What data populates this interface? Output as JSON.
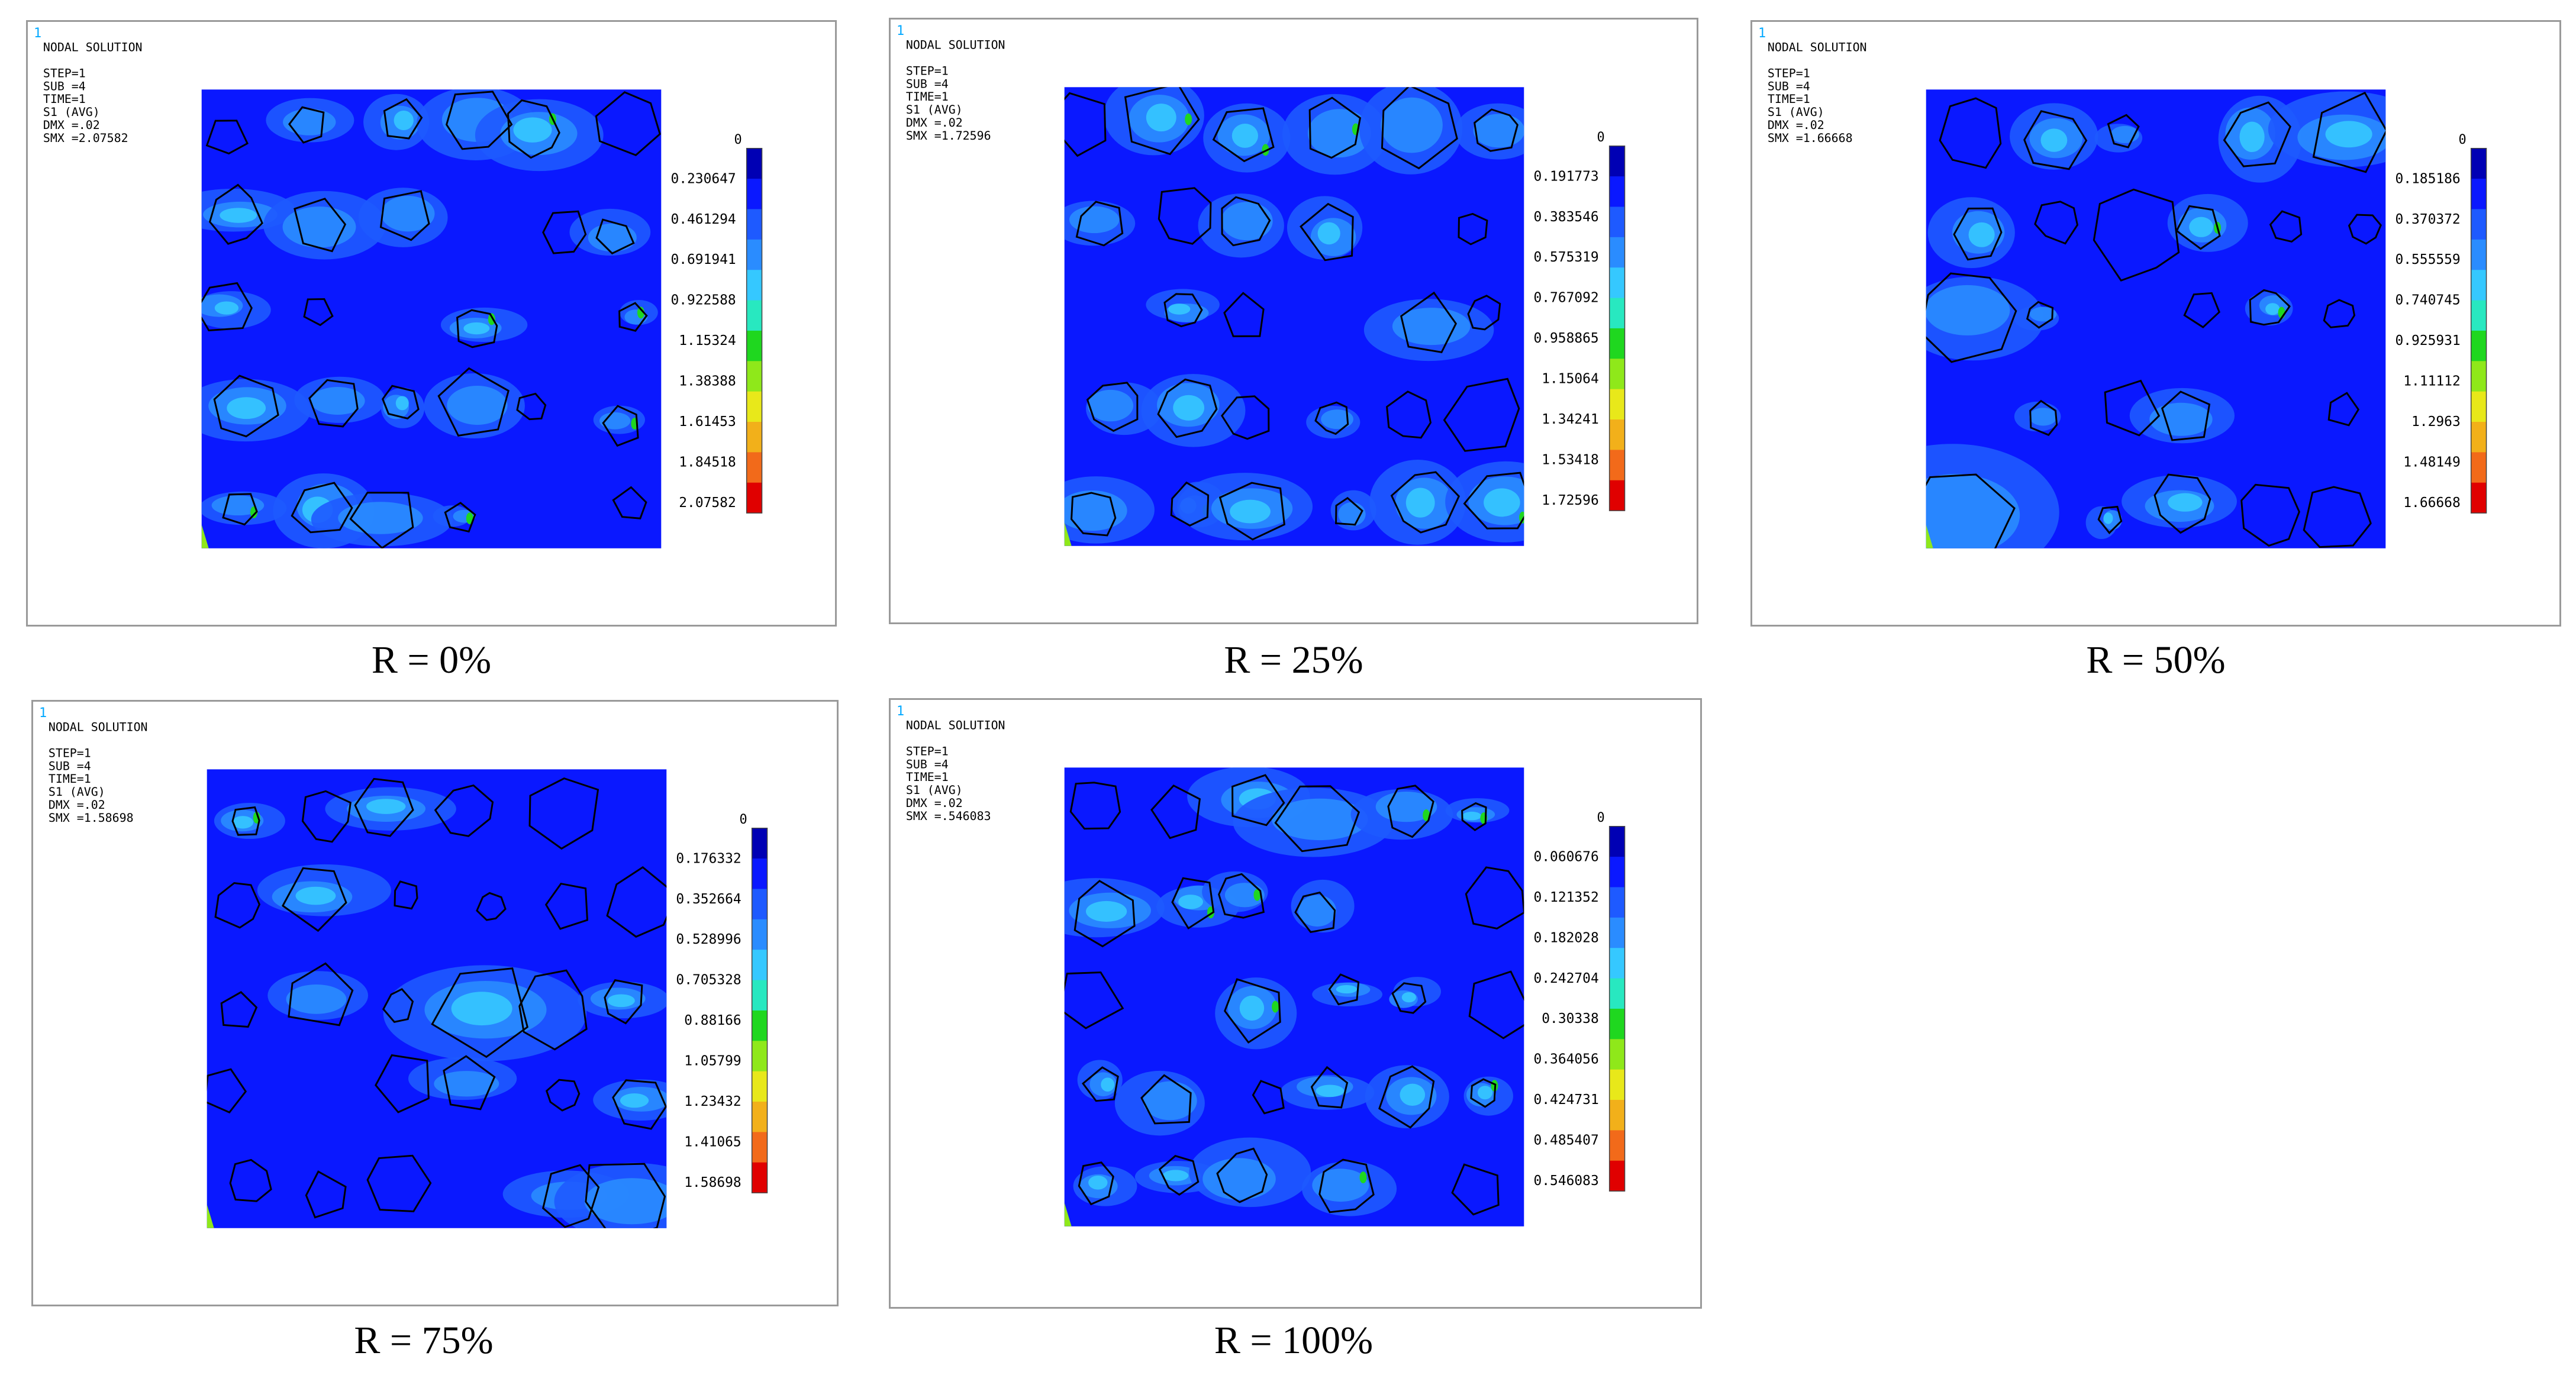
{
  "palette": {
    "background_blue": "#0a18ff",
    "contour": [
      "#0000b4",
      "#0a18ff",
      "#1e5aff",
      "#2a8cff",
      "#35c8ff",
      "#28e8c0",
      "#1fd71f",
      "#8fe81a",
      "#e8e81a",
      "#f2b01a",
      "#f26a1a",
      "#e00000"
    ],
    "inclusion_outline": "#000000"
  },
  "panels": [
    {
      "id": "r0",
      "window_number": "1",
      "header": [
        "NODAL SOLUTION",
        "",
        "STEP=1",
        "SUB =4",
        "TIME=1",
        "S1         (AVG)",
        "DMX =.02",
        "SMX =2.07582"
      ],
      "legend_top": "0",
      "legend_values": [
        "0.230647",
        "0.461294",
        "0.691941",
        "0.922588",
        "1.15324",
        "1.38388",
        "1.61453",
        "1.84518",
        "2.07582"
      ],
      "caption": "R = 0%",
      "stress_level": 1.0
    },
    {
      "id": "r25",
      "window_number": "1",
      "header": [
        "NODAL SOLUTION",
        "",
        "STEP=1",
        "SUB =4",
        "TIME=1",
        "S1         (AVG)",
        "DMX =.02",
        "SMX =1.72596"
      ],
      "legend_top": "0",
      "legend_values": [
        "0.191773",
        "0.383546",
        "0.575319",
        "0.767092",
        "0.958865",
        "1.15064",
        "1.34241",
        "1.53418",
        "1.72596"
      ],
      "caption": "R = 25%",
      "stress_level": 0.9
    },
    {
      "id": "r50",
      "window_number": "1",
      "header": [
        "NODAL SOLUTION",
        "",
        "STEP=1",
        "SUB =4",
        "TIME=1",
        "S1         (AVG)",
        "DMX =.02",
        "SMX =1.66668"
      ],
      "legend_top": "0",
      "legend_values": [
        "0.185186",
        "0.370372",
        "0.555559",
        "0.740745",
        "0.925931",
        "1.11112",
        "1.2963",
        "1.48149",
        "1.66668"
      ],
      "caption": "R = 50%",
      "stress_level": 0.8
    },
    {
      "id": "r75",
      "window_number": "1",
      "header": [
        "NODAL SOLUTION",
        "",
        "STEP=1",
        "SUB =4",
        "TIME=1",
        "S1         (AVG)",
        "DMX =.02",
        "SMX =1.58698"
      ],
      "legend_top": "0",
      "legend_values": [
        "0.176332",
        "0.352664",
        "0.528996",
        "0.705328",
        "0.88166",
        "1.05799",
        "1.23432",
        "1.41065",
        "1.58698"
      ],
      "caption": "R = 75%",
      "stress_level": 0.55
    },
    {
      "id": "r100",
      "window_number": "1",
      "header": [
        "NODAL SOLUTION",
        "",
        "STEP=1",
        "SUB =4",
        "TIME=1",
        "S1         (AVG)",
        "DMX =.02",
        "SMX =.546083"
      ],
      "legend_top": "0",
      "legend_values": [
        "0.060676",
        "0.121352",
        "0.182028",
        "0.242704",
        "0.30338",
        "0.364056",
        "0.424731",
        "0.485407",
        "0.546083"
      ],
      "caption": "R = 100%",
      "stress_level": 0.95
    }
  ]
}
